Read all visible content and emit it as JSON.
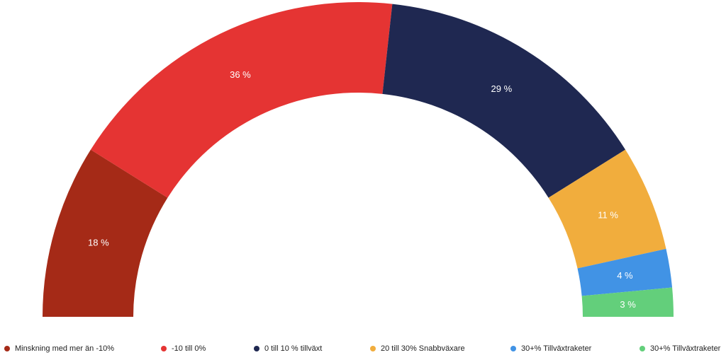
{
  "chart_data": {
    "type": "pie",
    "variant": "semi-donut",
    "categories": [
      "Minskning med mer än -10%",
      "-10 till 0%",
      "0 till 10 % tillväxt",
      "20 till 30% Snabbväxare",
      "30+% Tillväxtraketer",
      "30+% Tillväxtraketer"
    ],
    "values": [
      18,
      36,
      29,
      11,
      4,
      3
    ],
    "labels": [
      "18 %",
      "36 %",
      "29 %",
      "11 %",
      "4 %",
      "3 %"
    ],
    "colors": [
      "#a52a17",
      "#e53433",
      "#1f2851",
      "#f1ad3d",
      "#4193e5",
      "#63cf7b"
    ],
    "legend_position": "bottom"
  }
}
